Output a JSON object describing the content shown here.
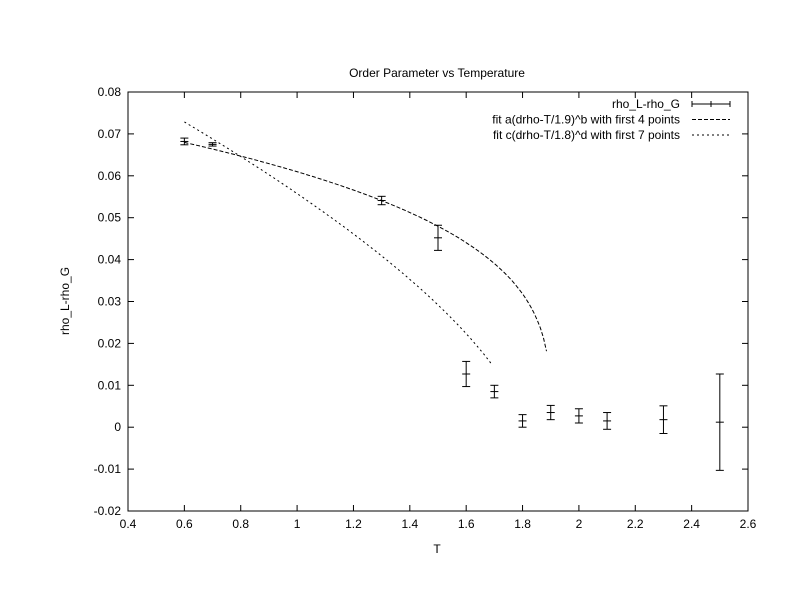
{
  "chart_data": {
    "type": "scatter",
    "title": "Order Parameter vs Temperature",
    "xlabel": "T",
    "ylabel": "rho_L-rho_G",
    "xlim": [
      0.4,
      2.6
    ],
    "ylim": [
      -0.02,
      0.08
    ],
    "xticks": [
      0.4,
      0.6,
      0.8,
      1,
      1.2,
      1.4,
      1.6,
      1.8,
      2,
      2.2,
      2.4,
      2.6
    ],
    "xtick_labels": [
      "0.4",
      "0.6",
      "0.8",
      "1",
      "1.2",
      "1.4",
      "1.6",
      "1.8",
      "2",
      "2.2",
      "2.4",
      "2.6"
    ],
    "yticks": [
      -0.02,
      -0.01,
      0,
      0.01,
      0.02,
      0.03,
      0.04,
      0.05,
      0.06,
      0.07,
      0.08
    ],
    "ytick_labels": [
      "-0.02",
      "-0.01",
      "0",
      "0.01",
      "0.02",
      "0.03",
      "0.04",
      "0.05",
      "0.06",
      "0.07",
      "0.08"
    ],
    "grid": false,
    "legend_position": "top-right",
    "series": [
      {
        "name": "rho_L-rho_G",
        "kind": "errorbars",
        "x": [
          0.6,
          0.7,
          1.3,
          1.5,
          1.6,
          1.7,
          1.8,
          1.9,
          2.0,
          2.1,
          2.3,
          2.5
        ],
        "y": [
          0.0682,
          0.0675,
          0.0541,
          0.0452,
          0.0127,
          0.0085,
          0.0015,
          0.0035,
          0.0027,
          0.0015,
          0.0018,
          0.0012
        ],
        "err": [
          0.0008,
          0.0004,
          0.001,
          0.003,
          0.003,
          0.0015,
          0.0015,
          0.0017,
          0.0017,
          0.002,
          0.0033,
          0.0115
        ]
      },
      {
        "name": "fit a(drho-T/1.9)^b with first 4 points",
        "kind": "fit",
        "Tc": 1.9,
        "amp": 0.0629,
        "exp": 0.296,
        "range": [
          0.6,
          1.885
        ],
        "dash": "long"
      },
      {
        "name": "fit c(drho-T/1.8)^d with first 7 points",
        "kind": "fit",
        "Tc": 1.8,
        "amp": 0.0646,
        "exp": 0.66,
        "range": [
          0.6,
          1.69
        ],
        "dash": "short"
      }
    ]
  }
}
